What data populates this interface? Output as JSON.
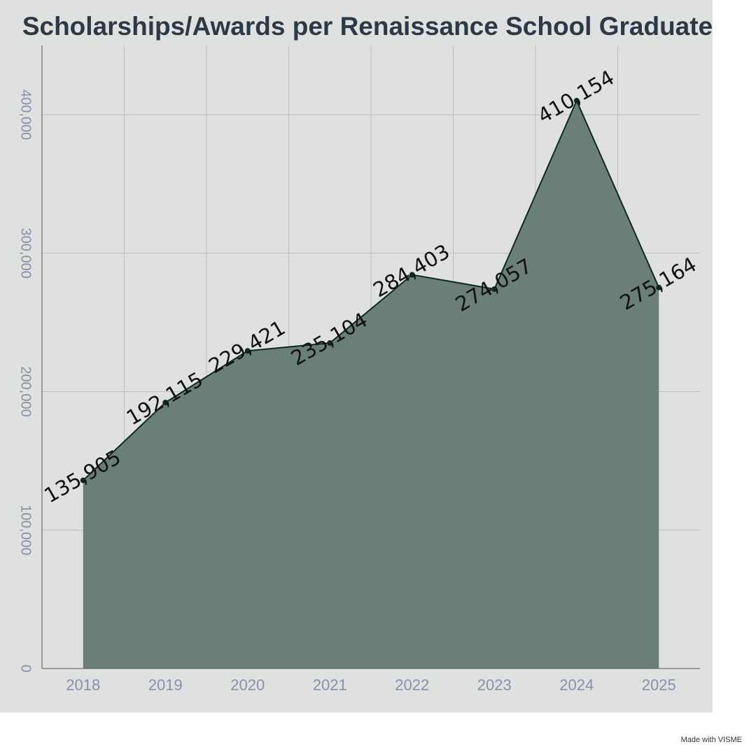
{
  "chart_data": {
    "type": "area",
    "title": "Scholarships/Awards per Renaissance School Graduate",
    "categories": [
      "2018",
      "2019",
      "2020",
      "2021",
      "2022",
      "2023",
      "2024",
      "2025"
    ],
    "values": [
      135905,
      192115,
      229421,
      235104,
      284403,
      274057,
      410154,
      275164
    ],
    "value_labels": [
      "135,905",
      "192,115",
      "229,421",
      "235,104",
      "284,403",
      "274,057",
      "410,154",
      "275,164"
    ],
    "color": "#6b7f7a",
    "line_color": "#0e2a20",
    "ylim": [
      0,
      450000
    ],
    "yticks": [
      0,
      {
        "value": 100000,
        "label": "100,000"
      },
      {
        "value": 200000,
        "label": "200,000"
      },
      {
        "value": 300000,
        "label": "300,000"
      },
      {
        "value": 400000,
        "label": "400,000"
      }
    ],
    "grid": true
  },
  "footer": "Made with VISME"
}
